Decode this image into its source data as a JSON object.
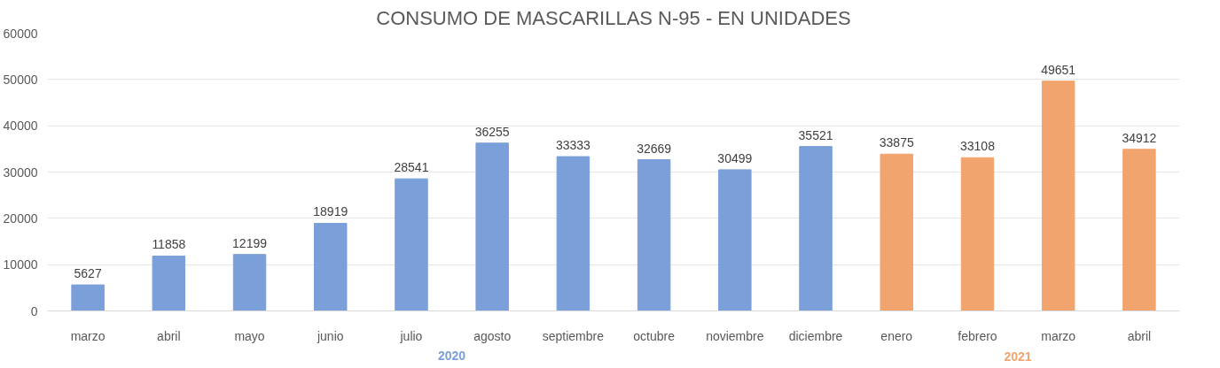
{
  "chart_data": {
    "type": "bar",
    "title": "CONSUMO DE MASCARILLAS N-95 - EN UNIDADES",
    "categories": [
      "marzo",
      "abril",
      "mayo",
      "junio",
      "julio",
      "agosto",
      "septiembre",
      "octubre",
      "noviembre",
      "diciembre",
      "enero",
      "febrero",
      "marzo",
      "abril"
    ],
    "series": [
      {
        "name": "2020",
        "color": "#7a9fd9",
        "values": [
          5627,
          11858,
          12199,
          18919,
          28541,
          36255,
          33333,
          32669,
          30499,
          35521,
          null,
          null,
          null,
          null
        ]
      },
      {
        "name": "2021",
        "color": "#f2a46e",
        "values": [
          null,
          null,
          null,
          null,
          null,
          null,
          null,
          null,
          null,
          null,
          33875,
          33108,
          49651,
          34912
        ]
      }
    ],
    "ylim": [
      0,
      60000
    ],
    "yticks": [
      0,
      10000,
      20000,
      30000,
      40000,
      50000,
      60000
    ],
    "grid": "y",
    "data_labels": true
  }
}
